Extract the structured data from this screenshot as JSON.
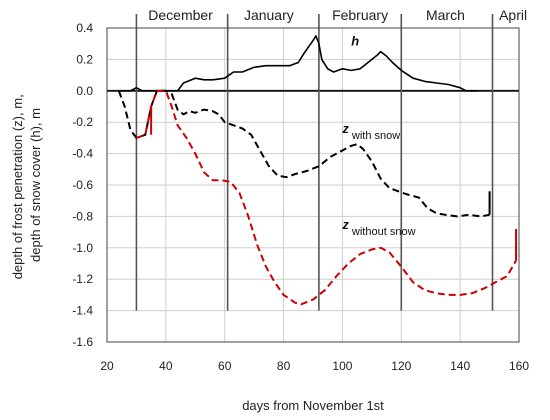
{
  "chart_data": {
    "type": "line",
    "xlabel": "days from November 1st",
    "ylabel_lines": [
      "depth of frost penetration (z), m,",
      "depth of snow cover (h), m"
    ],
    "xlim": [
      20,
      160
    ],
    "ylim": [
      -1.6,
      0.4
    ],
    "x_ticks": [
      20,
      40,
      60,
      80,
      100,
      120,
      140,
      160
    ],
    "y_ticks": [
      0.4,
      0.2,
      0.0,
      -0.2,
      -0.4,
      -0.6,
      -0.8,
      -1.0,
      -1.2,
      -1.4,
      -1.6
    ],
    "x_tick_labels": [
      "20",
      "40",
      "60",
      "80",
      "100",
      "120",
      "140",
      "160"
    ],
    "y_tick_labels": [
      "0.4",
      "0.2",
      "0.0",
      "-0.2",
      "-0.4",
      "-0.6",
      "-0.8",
      "-1.0",
      "-1.2",
      "-1.4",
      "-1.6"
    ],
    "grid": true,
    "month_labels": [
      {
        "text": "December",
        "x": 45
      },
      {
        "text": "January",
        "x": 75
      },
      {
        "text": "February",
        "x": 106
      },
      {
        "text": "March",
        "x": 135
      },
      {
        "text": "April",
        "x": 158
      }
    ],
    "month_boundaries": [
      30,
      61,
      92,
      120,
      151
    ],
    "series": [
      {
        "key": "h",
        "color": "#000000",
        "dash": "solid",
        "points": [
          [
            24,
            0
          ],
          [
            28,
            0
          ],
          [
            30,
            0.02
          ],
          [
            32,
            0
          ],
          [
            36,
            0
          ],
          [
            40,
            0
          ],
          [
            44,
            0
          ],
          [
            46,
            0.05
          ],
          [
            50,
            0.08
          ],
          [
            53,
            0.07
          ],
          [
            56,
            0.07
          ],
          [
            60,
            0.08
          ],
          [
            63,
            0.12
          ],
          [
            66,
            0.12
          ],
          [
            70,
            0.15
          ],
          [
            74,
            0.16
          ],
          [
            78,
            0.16
          ],
          [
            82,
            0.16
          ],
          [
            85,
            0.18
          ],
          [
            87,
            0.24
          ],
          [
            90,
            0.32
          ],
          [
            91,
            0.35
          ],
          [
            92,
            0.3
          ],
          [
            93,
            0.2
          ],
          [
            95,
            0.14
          ],
          [
            97,
            0.12
          ],
          [
            100,
            0.14
          ],
          [
            103,
            0.13
          ],
          [
            106,
            0.14
          ],
          [
            108,
            0.17
          ],
          [
            110,
            0.2
          ],
          [
            112,
            0.23
          ],
          [
            113,
            0.25
          ],
          [
            115,
            0.22
          ],
          [
            117,
            0.18
          ],
          [
            120,
            0.13
          ],
          [
            124,
            0.08
          ],
          [
            128,
            0.06
          ],
          [
            132,
            0.05
          ],
          [
            136,
            0.04
          ],
          [
            140,
            0.02
          ],
          [
            142,
            0.0
          ],
          [
            146,
            0.0
          ]
        ]
      },
      {
        "key": "z_with_snow",
        "color": "#000000",
        "dash": "dashed",
        "points": [
          [
            24,
            0
          ],
          [
            26,
            -0.1
          ],
          [
            28,
            -0.25
          ],
          [
            30,
            -0.3
          ],
          [
            33,
            -0.28
          ],
          [
            35,
            -0.1
          ],
          [
            37,
            0
          ],
          [
            40,
            0
          ],
          [
            42,
            -0.02
          ],
          [
            44,
            -0.12
          ],
          [
            46,
            -0.15
          ],
          [
            48,
            -0.13
          ],
          [
            50,
            -0.14
          ],
          [
            53,
            -0.12
          ],
          [
            56,
            -0.13
          ],
          [
            58,
            -0.15
          ],
          [
            60,
            -0.2
          ],
          [
            63,
            -0.22
          ],
          [
            66,
            -0.24
          ],
          [
            69,
            -0.28
          ],
          [
            72,
            -0.38
          ],
          [
            75,
            -0.48
          ],
          [
            78,
            -0.54
          ],
          [
            81,
            -0.55
          ],
          [
            84,
            -0.53
          ],
          [
            88,
            -0.51
          ],
          [
            92,
            -0.48
          ],
          [
            96,
            -0.42
          ],
          [
            100,
            -0.38
          ],
          [
            103,
            -0.35
          ],
          [
            105,
            -0.34
          ],
          [
            107,
            -0.37
          ],
          [
            110,
            -0.45
          ],
          [
            113,
            -0.56
          ],
          [
            116,
            -0.62
          ],
          [
            119,
            -0.64
          ],
          [
            122,
            -0.66
          ],
          [
            126,
            -0.68
          ],
          [
            129,
            -0.75
          ],
          [
            132,
            -0.78
          ],
          [
            135,
            -0.79
          ],
          [
            139,
            -0.8
          ],
          [
            143,
            -0.79
          ],
          [
            147,
            -0.8
          ],
          [
            150,
            -0.79
          ]
        ]
      },
      {
        "key": "z_without_snow",
        "color": "#cc0000",
        "dash": "dashed",
        "points": [
          [
            30,
            -0.3
          ],
          [
            33,
            -0.28
          ],
          [
            35,
            -0.1
          ],
          [
            37,
            0
          ],
          [
            40,
            0
          ],
          [
            42,
            -0.1
          ],
          [
            44,
            -0.22
          ],
          [
            47,
            -0.3
          ],
          [
            50,
            -0.4
          ],
          [
            53,
            -0.52
          ],
          [
            56,
            -0.57
          ],
          [
            59,
            -0.57
          ],
          [
            62,
            -0.58
          ],
          [
            65,
            -0.65
          ],
          [
            68,
            -0.8
          ],
          [
            71,
            -0.98
          ],
          [
            74,
            -1.12
          ],
          [
            77,
            -1.22
          ],
          [
            80,
            -1.3
          ],
          [
            84,
            -1.35
          ],
          [
            86,
            -1.36
          ],
          [
            90,
            -1.33
          ],
          [
            94,
            -1.27
          ],
          [
            98,
            -1.18
          ],
          [
            102,
            -1.1
          ],
          [
            106,
            -1.04
          ],
          [
            110,
            -1.01
          ],
          [
            113,
            -1.0
          ],
          [
            116,
            -1.03
          ],
          [
            120,
            -1.12
          ],
          [
            124,
            -1.22
          ],
          [
            128,
            -1.27
          ],
          [
            132,
            -1.29
          ],
          [
            136,
            -1.3
          ],
          [
            140,
            -1.3
          ],
          [
            144,
            -1.29
          ],
          [
            148,
            -1.26
          ],
          [
            152,
            -1.22
          ],
          [
            156,
            -1.18
          ],
          [
            159,
            -1.08
          ]
        ]
      }
    ],
    "end_markers": [
      {
        "series": "z_with_snow",
        "x": 150,
        "y_from": -0.79,
        "y_to": -0.64,
        "color": "#000000"
      },
      {
        "series": "z_without_snow",
        "x": 159,
        "y_from": -1.08,
        "y_to": -0.88,
        "color": "#cc0000"
      },
      {
        "series": "z_without_snow",
        "x": 35,
        "y_from": -0.28,
        "y_to": -0.1,
        "color": "#cc0000"
      }
    ],
    "annotations": [
      {
        "key": "h",
        "main": "h",
        "sub": "",
        "x": 103,
        "y": 0.29
      },
      {
        "key": "z_with_snow",
        "main": "z",
        "sub": "with snow",
        "x": 100,
        "y": -0.27
      },
      {
        "key": "z_without_snow",
        "main": "z",
        "sub": "without snow",
        "x": 100,
        "y": -0.88
      }
    ]
  }
}
